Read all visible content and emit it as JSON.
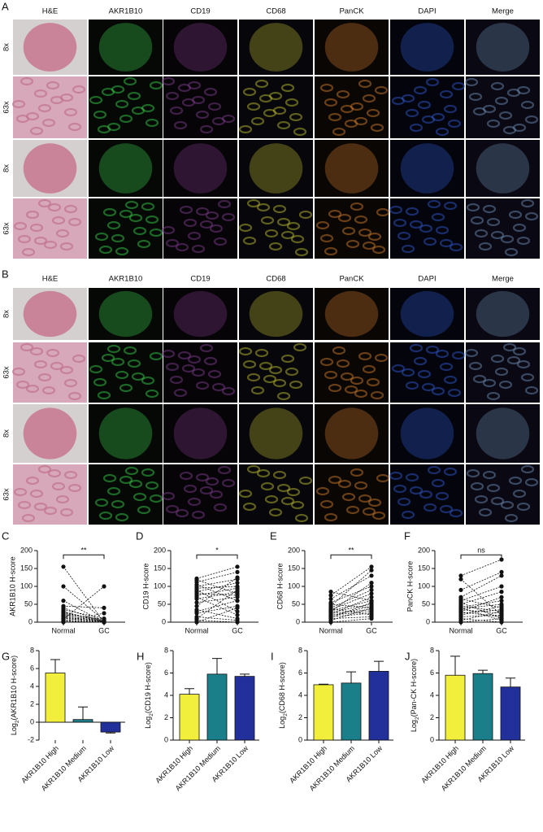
{
  "image_panels": [
    {
      "label": "A",
      "columns": [
        "H&E",
        "AKR1B10",
        "CD19",
        "CD68",
        "PanCK",
        "DAPI",
        "Merge"
      ],
      "rows": [
        "8x",
        "63x",
        "8x",
        "63x"
      ]
    },
    {
      "label": "B",
      "columns": [
        "H&E",
        "AKR1B10",
        "CD19",
        "CD68",
        "PanCK",
        "DAPI",
        "Merge"
      ],
      "rows": [
        "8x",
        "63x",
        "8x",
        "63x"
      ]
    }
  ],
  "chart_data": [
    {
      "type": "paired",
      "panel": "C",
      "y_label": "AKR1B10 H-score",
      "annotation": "**",
      "categories": [
        "Normal",
        "GC"
      ],
      "ylim": [
        0,
        200
      ],
      "yticks": [
        0,
        50,
        100,
        150,
        200
      ],
      "values": [
        [
          155,
          0
        ],
        [
          100,
          5
        ],
        [
          60,
          0
        ],
        [
          45,
          40
        ],
        [
          40,
          0
        ],
        [
          35,
          10
        ],
        [
          30,
          0
        ],
        [
          28,
          0
        ],
        [
          25,
          5
        ],
        [
          22,
          8
        ],
        [
          20,
          0
        ],
        [
          18,
          3
        ],
        [
          15,
          0
        ],
        [
          12,
          2
        ],
        [
          10,
          0
        ],
        [
          8,
          100
        ],
        [
          5,
          0
        ],
        [
          3,
          0
        ],
        [
          2,
          25
        ],
        [
          0,
          0
        ]
      ]
    },
    {
      "type": "paired",
      "panel": "D",
      "y_label": "CD19 H-score",
      "annotation": "*",
      "categories": [
        "Normal",
        "GC"
      ],
      "ylim": [
        0,
        200
      ],
      "yticks": [
        0,
        50,
        100,
        150,
        200
      ],
      "values": [
        [
          122,
          155
        ],
        [
          118,
          80
        ],
        [
          112,
          140
        ],
        [
          105,
          60
        ],
        [
          100,
          120
        ],
        [
          95,
          100
        ],
        [
          90,
          30
        ],
        [
          85,
          110
        ],
        [
          80,
          75
        ],
        [
          75,
          95
        ],
        [
          70,
          20
        ],
        [
          65,
          85
        ],
        [
          55,
          70
        ],
        [
          45,
          125
        ],
        [
          35,
          10
        ],
        [
          30,
          60
        ],
        [
          25,
          45
        ],
        [
          15,
          5
        ],
        [
          10,
          90
        ],
        [
          5,
          0
        ],
        [
          0,
          40
        ]
      ]
    },
    {
      "type": "paired",
      "panel": "E",
      "y_label": "CD68 H-score",
      "annotation": "**",
      "categories": [
        "Normal",
        "GC"
      ],
      "ylim": [
        0,
        200
      ],
      "yticks": [
        0,
        50,
        100,
        150,
        200
      ],
      "values": [
        [
          85,
          60
        ],
        [
          75,
          155
        ],
        [
          65,
          130
        ],
        [
          55,
          100
        ],
        [
          50,
          40
        ],
        [
          45,
          145
        ],
        [
          40,
          90
        ],
        [
          38,
          20
        ],
        [
          35,
          80
        ],
        [
          32,
          60
        ],
        [
          30,
          110
        ],
        [
          28,
          50
        ],
        [
          25,
          35
        ],
        [
          22,
          70
        ],
        [
          20,
          30
        ],
        [
          18,
          45
        ],
        [
          15,
          25
        ],
        [
          12,
          55
        ],
        [
          10,
          15
        ],
        [
          5,
          40
        ],
        [
          0,
          10
        ]
      ]
    },
    {
      "type": "paired",
      "panel": "F",
      "y_label": "PanCK H-score",
      "annotation": "ns",
      "categories": [
        "Normal",
        "GC"
      ],
      "ylim": [
        0,
        200
      ],
      "yticks": [
        0,
        50,
        100,
        150,
        200
      ],
      "values": [
        [
          130,
          175
        ],
        [
          120,
          20
        ],
        [
          90,
          140
        ],
        [
          70,
          130
        ],
        [
          65,
          40
        ],
        [
          60,
          100
        ],
        [
          55,
          10
        ],
        [
          50,
          85
        ],
        [
          45,
          30
        ],
        [
          42,
          60
        ],
        [
          40,
          5
        ],
        [
          38,
          50
        ],
        [
          35,
          25
        ],
        [
          30,
          70
        ],
        [
          28,
          15
        ],
        [
          25,
          35
        ],
        [
          20,
          45
        ],
        [
          15,
          20
        ],
        [
          10,
          0
        ],
        [
          5,
          30
        ],
        [
          0,
          10
        ]
      ]
    },
    {
      "type": "bar",
      "panel": "G",
      "y_label_prefix": "Log",
      "y_label_sub": "2",
      "y_label_suffix": "(AKR1B10 H-score)",
      "categories": [
        "AKR1B10 High",
        "AKR1B10 Medium",
        "AKR1B10 Low"
      ],
      "colors": [
        "#f2ee3c",
        "#1b7f8a",
        "#21309a"
      ],
      "values": [
        5.5,
        0.3,
        -1.1
      ],
      "errors": [
        1.5,
        1.4,
        0.1
      ],
      "ylim": [
        -2,
        8
      ],
      "yticks": [
        -2,
        0,
        2,
        4,
        6,
        8
      ]
    },
    {
      "type": "bar",
      "panel": "H",
      "y_label_prefix": "Log",
      "y_label_sub": "2",
      "y_label_suffix": "(CD19 H-score)",
      "categories": [
        "AKR1B10 High",
        "AKR1B10 Medium",
        "AKR1B10 Low"
      ],
      "colors": [
        "#f2ee3c",
        "#1b7f8a",
        "#21309a"
      ],
      "values": [
        4.1,
        5.9,
        5.7
      ],
      "errors": [
        0.5,
        1.4,
        0.2
      ],
      "ylim": [
        0,
        8
      ],
      "yticks": [
        0,
        2,
        4,
        6,
        8
      ]
    },
    {
      "type": "bar",
      "panel": "I",
      "y_label_prefix": "Log",
      "y_label_sub": "2",
      "y_label_suffix": "(CD68 H-score)",
      "categories": [
        "AKR1B10 High",
        "AKR1B10 Medium",
        "AKR1B10 Low"
      ],
      "colors": [
        "#f2ee3c",
        "#1b7f8a",
        "#21309a"
      ],
      "values": [
        4.95,
        5.1,
        6.15
      ],
      "errors": [
        0.05,
        1.0,
        0.9
      ],
      "ylim": [
        0,
        8
      ],
      "yticks": [
        0,
        2,
        4,
        6,
        8
      ]
    },
    {
      "type": "bar",
      "panel": "J",
      "y_label_prefix": "Log",
      "y_label_sub": "2",
      "y_label_suffix": "(Pan-CK H-score)",
      "categories": [
        "AKR1B10 High",
        "AKR1B10 Medium",
        "AKR1B10 Low"
      ],
      "colors": [
        "#f2ee3c",
        "#1b7f8a",
        "#21309a"
      ],
      "values": [
        5.8,
        5.95,
        4.75
      ],
      "errors": [
        1.7,
        0.3,
        0.8
      ],
      "ylim": [
        0,
        8
      ],
      "yticks": [
        0,
        2,
        4,
        6,
        8
      ]
    }
  ]
}
